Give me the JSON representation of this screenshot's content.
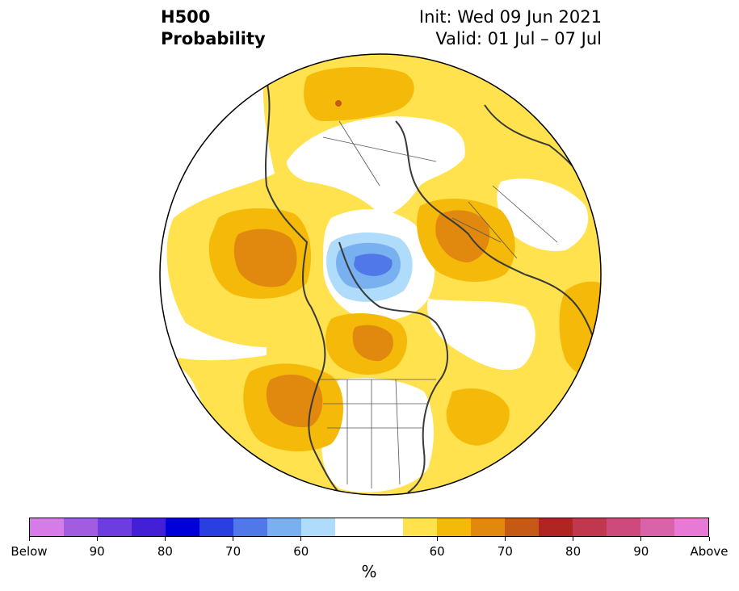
{
  "header": {
    "title_line1": "H500",
    "title_line2": "Probability",
    "init_text": "Init: Wed 09 Jun 2021",
    "valid_text": "Valid: 01 Jul – 07 Jul"
  },
  "colorbar": {
    "unit_label": "%",
    "colors": [
      "#d67be8",
      "#a25ce0",
      "#6e3ddf",
      "#4320d6",
      "#0000d8",
      "#2a3fe0",
      "#5078e8",
      "#78b0f0",
      "#afdcfa",
      "#ffffff",
      "#ffffff",
      "#ffe24e",
      "#f5b909",
      "#e1890f",
      "#c45a16",
      "#b02422",
      "#c0384e",
      "#cc4a7c",
      "#d963a8",
      "#e87ad6"
    ],
    "tick_labels": [
      "Below",
      "90",
      "80",
      "70",
      "60",
      "60",
      "70",
      "80",
      "90",
      "Above"
    ]
  },
  "map": {
    "legend_levels": [
      "below-50-60",
      "below-60-70",
      "below-70-80",
      "above-50-60",
      "above-60-70",
      "above-70-80"
    ],
    "colors": {
      "above_50_60": "#ffe24e",
      "above_60_70": "#f5b909",
      "above_70_80": "#e1890f",
      "above_80": "#c45a16",
      "below_50_60": "#afdcfa",
      "below_60_70": "#78b0f0",
      "below_70_80": "#5078e8",
      "neutral": "#ffffff",
      "coastline": "#3a3a3a"
    }
  }
}
